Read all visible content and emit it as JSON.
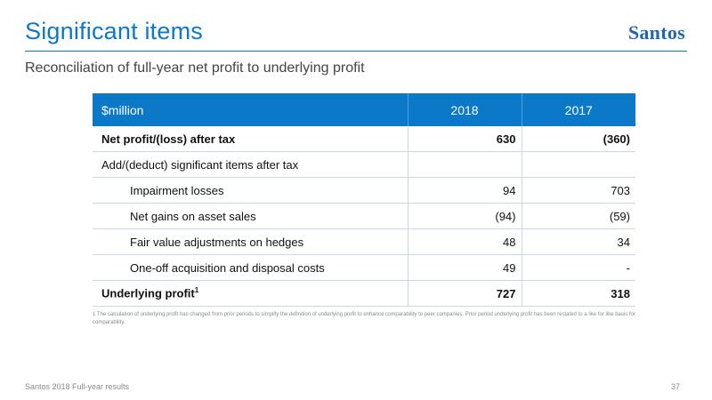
{
  "header": {
    "title": "Significant items",
    "logo": "Santos",
    "subtitle": "Reconciliation of full-year net profit to underlying profit"
  },
  "colors": {
    "accent": "#0b79c8",
    "logo": "#1f67b1",
    "rule": "#c9d7e6"
  },
  "table": {
    "headers": [
      "$million",
      "2018",
      "2017"
    ],
    "rows": [
      {
        "label": "Net profit/(loss) after tax",
        "v2018": "630",
        "v2017": "(360)"
      },
      {
        "label": "Add/(deduct) significant items after tax",
        "v2018": "",
        "v2017": ""
      },
      {
        "label": "Impairment losses",
        "v2018": "94",
        "v2017": "703"
      },
      {
        "label": "Net gains on asset sales",
        "v2018": "(94)",
        "v2017": "(59)"
      },
      {
        "label": "Fair value adjustments on hedges",
        "v2018": "48",
        "v2017": "34"
      },
      {
        "label": "One-off acquisition and disposal costs",
        "v2018": "49",
        "v2017": "-"
      },
      {
        "label": "Underlying profit",
        "label_sup": "1",
        "v2018": "727",
        "v2017": "318"
      }
    ]
  },
  "footnote": "1 The calculation of underlying profit has changed from prior periods to simplify the definition of underlying profit to enhance comparability to peer companies. Prior period underlying profit has been restated to a like for like basis for comparability.",
  "footer": {
    "left": "Santos 2018 Full-year results",
    "page_number": "37"
  }
}
